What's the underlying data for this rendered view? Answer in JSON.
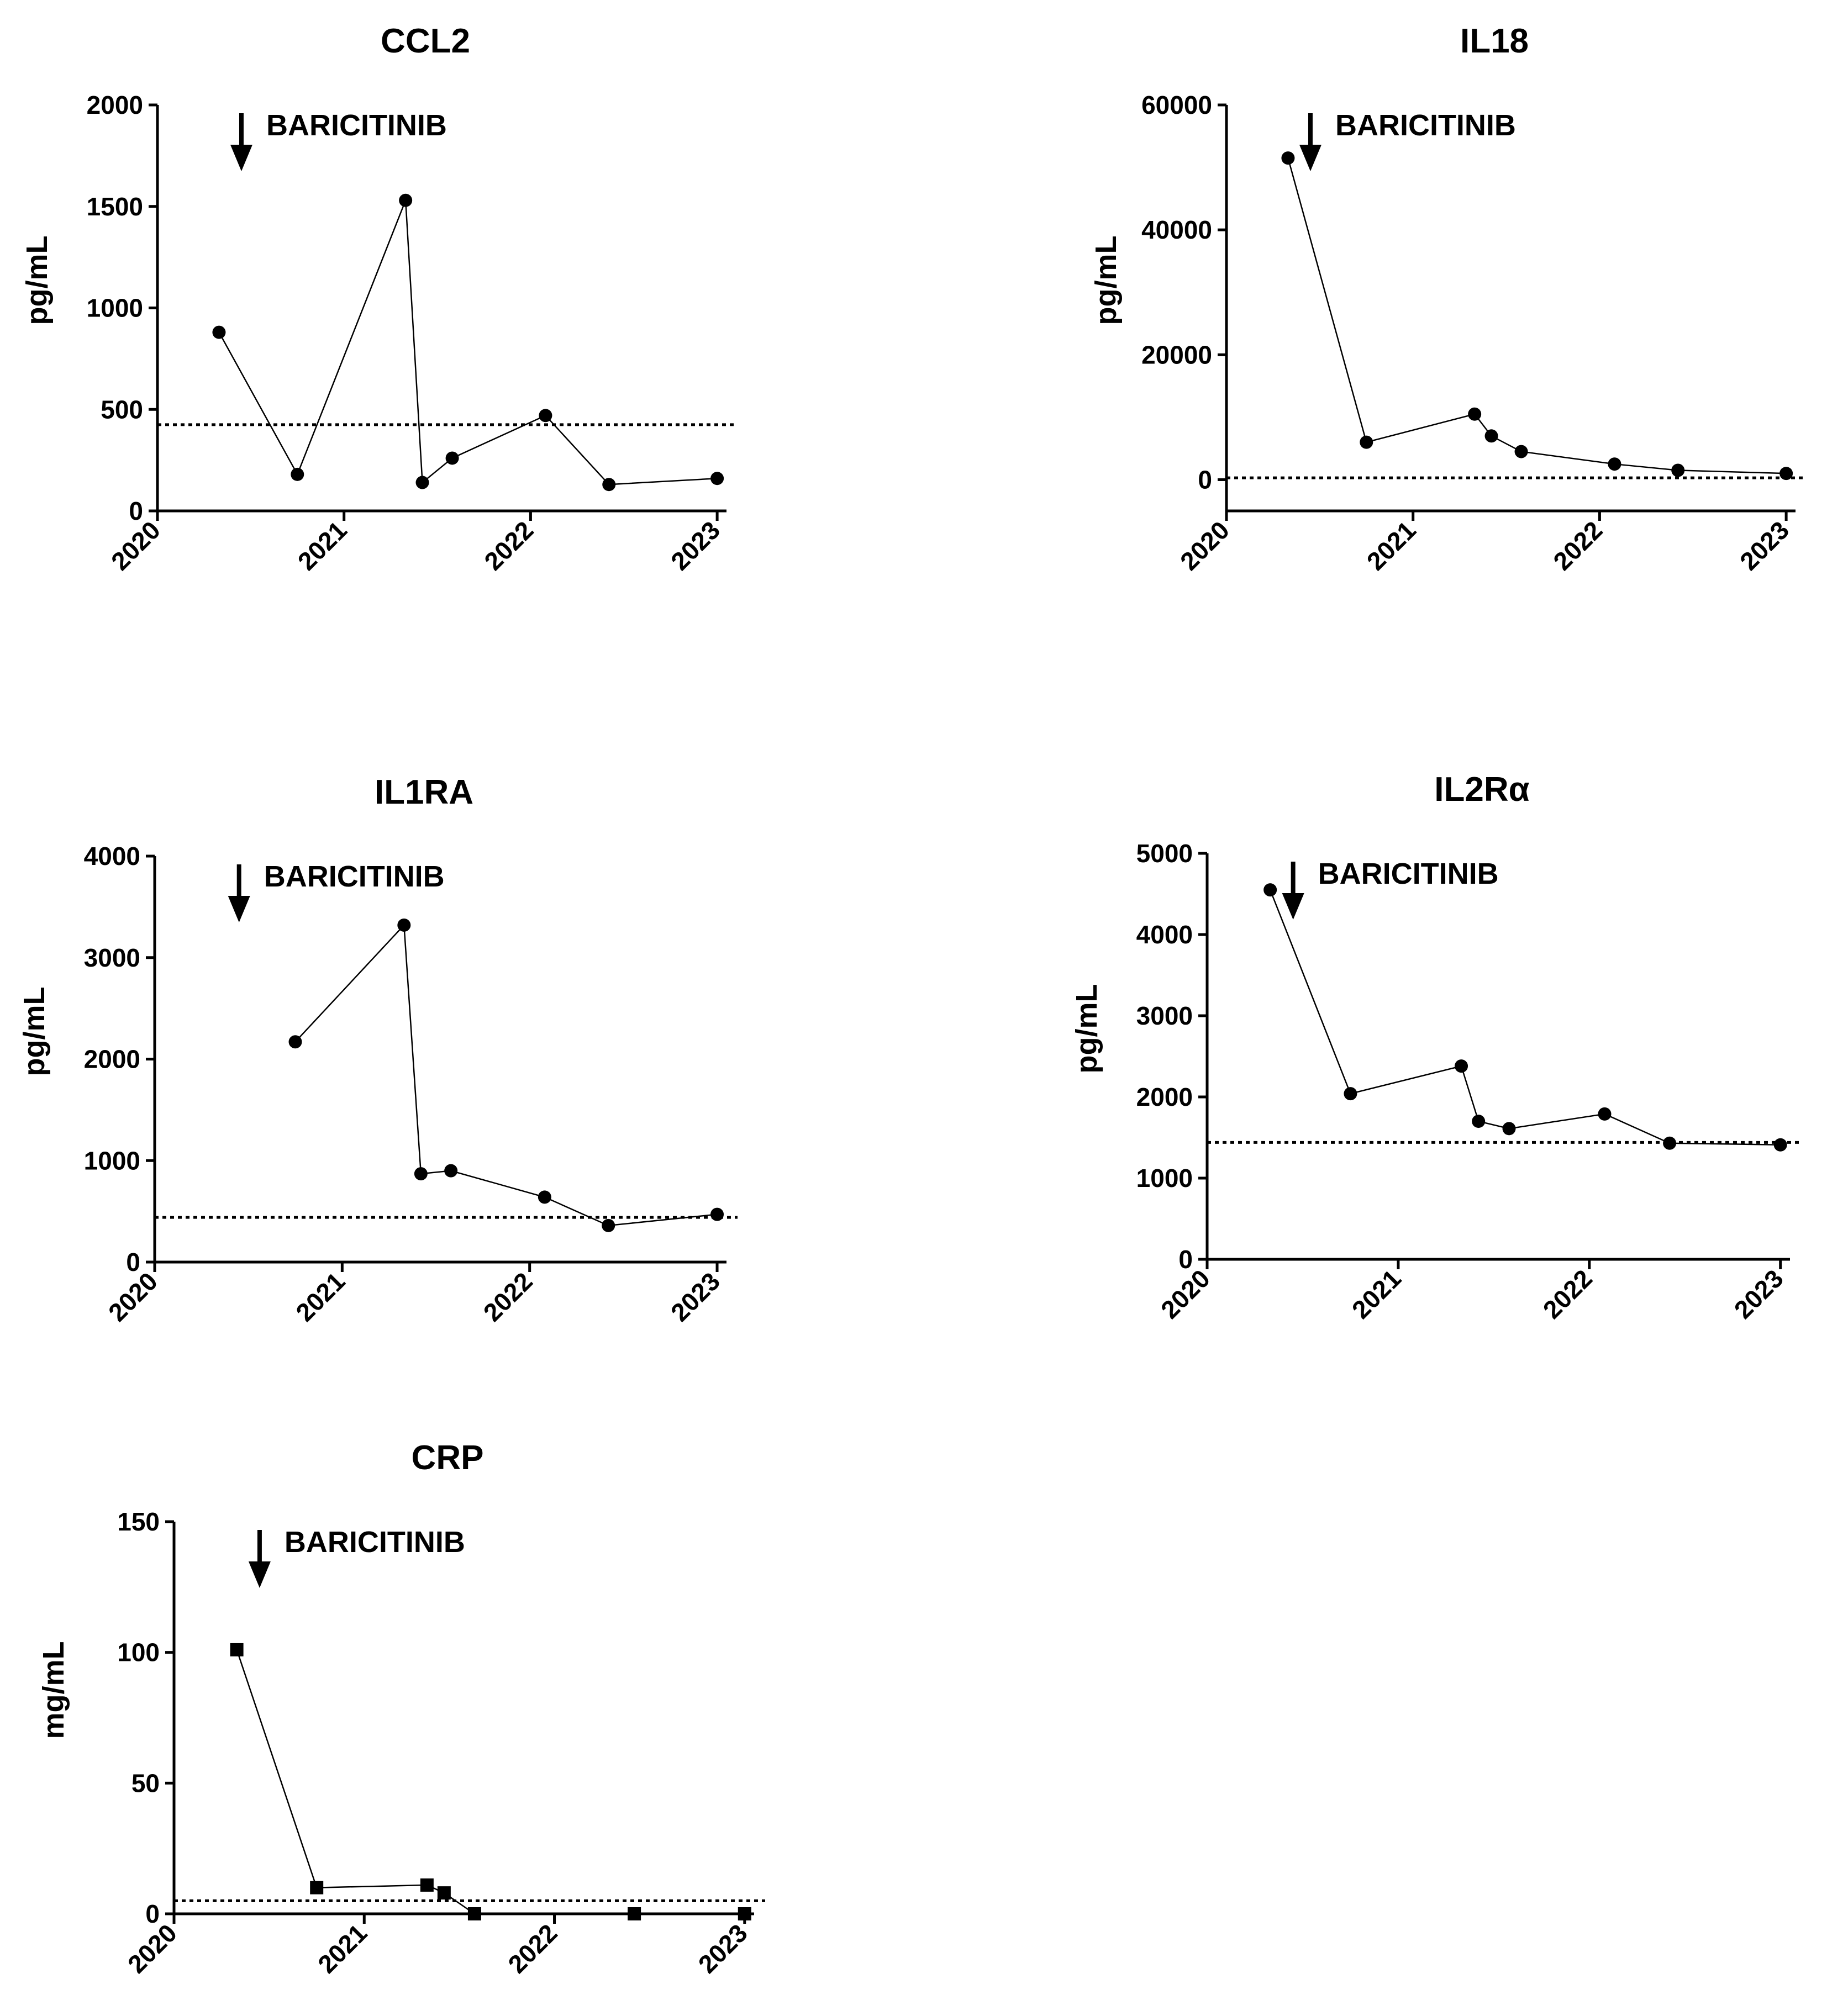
{
  "chart_data": [
    {
      "type": "line",
      "title": "CCL2",
      "ylabel": "pg/mL",
      "xlabel": "",
      "xlim": [
        2020,
        2023.05
      ],
      "ylim": [
        0,
        2000
      ],
      "yticks": [
        0,
        500,
        1000,
        1500,
        2000
      ],
      "xticks": [
        "2020",
        "2021",
        "2022",
        "2023"
      ],
      "annotation": {
        "text": "BARICITINIB",
        "x": 2020.45
      },
      "reference_line": 425,
      "marker": "circle",
      "x": [
        2020.33,
        2020.75,
        2021.33,
        2021.42,
        2021.58,
        2022.08,
        2022.42,
        2023.0
      ],
      "y": [
        880,
        180,
        1530,
        140,
        260,
        470,
        130,
        160
      ]
    },
    {
      "type": "line",
      "title": "IL18",
      "ylabel": "pg/mL",
      "xlabel": "",
      "xlim": [
        2020,
        2023.05
      ],
      "ylim": [
        -5000,
        60000
      ],
      "yticks": [
        0,
        20000,
        40000,
        60000
      ],
      "xticks": [
        "2020",
        "2021",
        "2022",
        "2023"
      ],
      "annotation": {
        "text": "BARICITINIB",
        "x": 2020.45
      },
      "reference_line": 300,
      "marker": "circle",
      "x": [
        2020.33,
        2020.75,
        2021.33,
        2021.42,
        2021.58,
        2022.08,
        2022.42,
        2023.0
      ],
      "y": [
        51500,
        6000,
        10500,
        7000,
        4500,
        2500,
        1500,
        1000
      ]
    },
    {
      "type": "line",
      "title": "IL1RA",
      "ylabel": "pg/mL",
      "xlabel": "",
      "xlim": [
        2020,
        2023.05
      ],
      "ylim": [
        0,
        4000
      ],
      "yticks": [
        0,
        1000,
        2000,
        3000,
        4000
      ],
      "xticks": [
        "2020",
        "2021",
        "2022",
        "2023"
      ],
      "annotation": {
        "text": "BARICITINIB",
        "x": 2020.45
      },
      "reference_line": 440,
      "marker": "circle",
      "x": [
        2020.75,
        2021.33,
        2021.42,
        2021.58,
        2022.08,
        2022.42,
        2023.0
      ],
      "y": [
        2170,
        3320,
        870,
        900,
        640,
        360,
        470
      ]
    },
    {
      "type": "line",
      "title": "IL2Rα",
      "ylabel": "pg/mL",
      "xlabel": "",
      "xlim": [
        2020,
        2023.05
      ],
      "ylim": [
        0,
        5000
      ],
      "yticks": [
        0,
        1000,
        2000,
        3000,
        4000,
        5000
      ],
      "xticks": [
        "2020",
        "2021",
        "2022",
        "2023"
      ],
      "annotation": {
        "text": "BARICITINIB",
        "x": 2020.45
      },
      "reference_line": 1440,
      "marker": "circle",
      "x": [
        2020.33,
        2020.75,
        2021.33,
        2021.42,
        2021.58,
        2022.08,
        2022.42,
        2023.0
      ],
      "y": [
        4550,
        2040,
        2380,
        1700,
        1610,
        1790,
        1430,
        1410
      ]
    },
    {
      "type": "line",
      "title": "CRP",
      "ylabel": "mg/mL",
      "xlabel": "",
      "xlim": [
        2020,
        2023.05
      ],
      "ylim": [
        0,
        150
      ],
      "yticks": [
        0,
        50,
        100,
        150
      ],
      "xticks": [
        "2020",
        "2021",
        "2022",
        "2023"
      ],
      "annotation": {
        "text": "BARICITINIB",
        "x": 2020.45
      },
      "reference_line": 5,
      "marker": "square",
      "x": [
        2020.33,
        2020.75,
        2021.33,
        2021.42,
        2021.58,
        2022.42,
        2023.0
      ],
      "y": [
        101,
        10,
        11,
        8,
        0,
        0,
        0
      ]
    }
  ]
}
